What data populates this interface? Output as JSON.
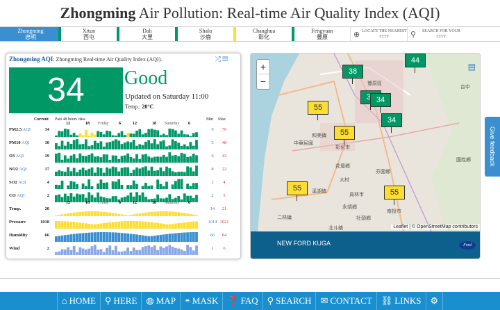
{
  "title": {
    "city": "Zhongming",
    "rest": " Air Pollution: Real-time Air Quality Index (AQI)"
  },
  "cities": [
    {
      "en": "Zhongming",
      "zh": "忠明",
      "active": true
    },
    {
      "en": "Xitun",
      "zh": "西屯"
    },
    {
      "en": "Dali",
      "zh": "大里"
    },
    {
      "en": "Shalu",
      "zh": "沙鹿"
    },
    {
      "en": "Changhua",
      "zh": "彰化"
    },
    {
      "en": "Fengyuan",
      "zh": "豐原"
    }
  ],
  "tools": {
    "locate": "LOCATE THE NEAREST CITY",
    "search": "SEARCH FOR YOUR CITY"
  },
  "panel": {
    "head_bold": "Zhongming AQI",
    "head_rest": ": Zhongming Real-time Air Quality Index (AQI).",
    "aqi": "34",
    "status": "Good",
    "updated": "Updated on Saturday 11:00",
    "temp_label": "Temp.:",
    "temp_value": "20°C",
    "col_current": "Current",
    "col_past": "Past 48 hours data",
    "col_min": "Min",
    "col_max": "Max",
    "hours": [
      "12",
      "18",
      "Friday",
      "6",
      "12",
      "18",
      "Saturday",
      "6"
    ],
    "rows": [
      {
        "label": "PM2.5",
        "unit": "AQI",
        "cur": "34",
        "min": "9",
        "max": "70"
      },
      {
        "label": "PM10",
        "unit": "AQI",
        "cur": "10",
        "min": "5",
        "max": "48"
      },
      {
        "label": "O3",
        "unit": "AQI",
        "cur": "19",
        "min": "6",
        "max": "43"
      },
      {
        "label": "NO2",
        "unit": "AQI",
        "cur": "17",
        "min": "8",
        "max": "22"
      },
      {
        "label": "SO2",
        "unit": "AQI",
        "cur": "4",
        "min": "2",
        "max": "4"
      },
      {
        "label": "CO",
        "unit": "AQI",
        "cur": "2",
        "min": "2",
        "max": "5"
      },
      {
        "label": "Temp.",
        "unit": "",
        "cur": "20",
        "min": "14",
        "max": "21"
      },
      {
        "label": "Pressure",
        "unit": "",
        "cur": "1018",
        "min": "1014",
        "max": "1021"
      },
      {
        "label": "Humidity",
        "unit": "",
        "cur": "66",
        "min": "66",
        "max": "84"
      },
      {
        "label": "Wind",
        "unit": "",
        "cur": "2",
        "min": "1",
        "max": "6"
      }
    ]
  },
  "map": {
    "markers": [
      {
        "v": "44",
        "c": "g"
      },
      {
        "v": "38",
        "c": "g"
      },
      {
        "v": "34",
        "c": "g"
      },
      {
        "v": "34",
        "c": "g"
      },
      {
        "v": "34",
        "c": "g"
      },
      {
        "v": "55",
        "c": "y"
      },
      {
        "v": "55",
        "c": "y"
      },
      {
        "v": "55",
        "c": "y"
      },
      {
        "v": "55",
        "c": "y"
      }
    ],
    "labels": [
      "中華民國",
      "豐原區",
      "台中",
      "和美鎮",
      "彰化市",
      "花壇鄉",
      "大村",
      "溪湖鎮",
      "二林鎮",
      "員林市",
      "永靖鄉",
      "芬園鄉",
      "國姓鄉",
      "南投市",
      "北斗鎮",
      "社頭鄉"
    ],
    "zoom_in": "+",
    "zoom_out": "−",
    "attribution": "Leaflet | © OpenStreetMap contributors"
  },
  "ad": {
    "headline": "NEW FORD KUGA",
    "brand": "Ford"
  },
  "feedback": "Give feedback",
  "nav": [
    {
      "label": "HOME",
      "icon": "home-icon",
      "glyph": "⌂"
    },
    {
      "label": "HERE",
      "icon": "location-pin-icon",
      "glyph": "⚲"
    },
    {
      "label": "MAP",
      "icon": "globe-icon",
      "glyph": "◍"
    },
    {
      "label": "MASK",
      "icon": "mask-icon",
      "glyph": "◓"
    },
    {
      "label": "FAQ",
      "icon": "faq-icon",
      "glyph": "❓"
    },
    {
      "label": "SEARCH",
      "icon": "search-icon",
      "glyph": "⚲"
    },
    {
      "label": "CONTACT",
      "icon": "contact-icon",
      "glyph": "✉"
    },
    {
      "label": "LINKS",
      "icon": "link-icon",
      "glyph": "⛓"
    },
    {
      "label": "",
      "icon": "settings-gear-icon",
      "glyph": "⚙"
    }
  ]
}
